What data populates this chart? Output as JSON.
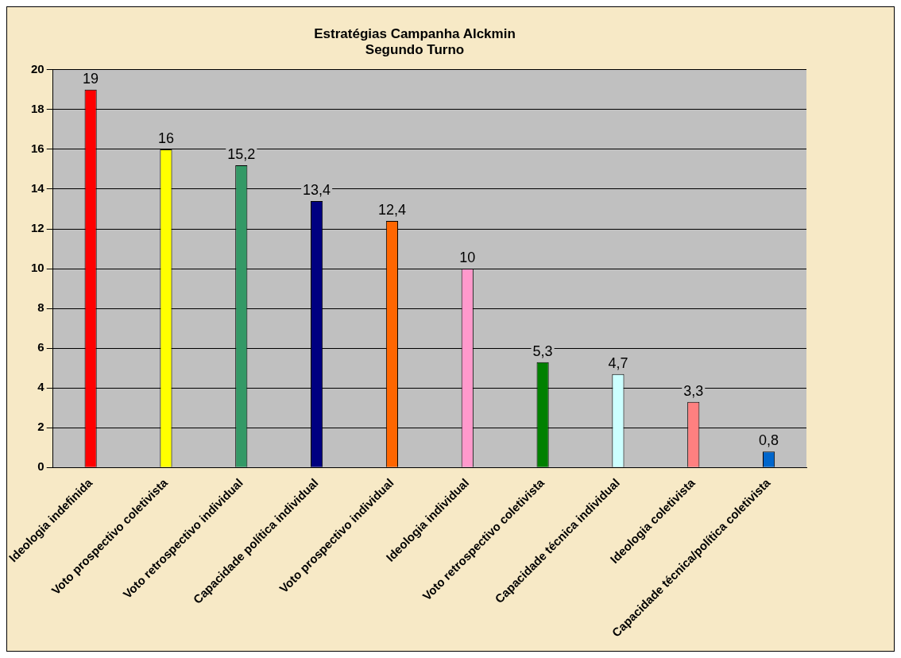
{
  "chart_data": {
    "type": "bar",
    "title": "Estratégias Campanha Alckmin",
    "subtitle": "Segundo Turno",
    "categories": [
      "Ideologia indefinida",
      "Voto prospectivo coletivista",
      "Voto retrospectivo individual",
      "Capacidade política individual",
      "Voto prospectivo individual",
      "Ideologia individual",
      "Voto retrospectivo coletivista",
      "Capacidade técnica individual",
      "Ideologia coletivista",
      "Capacidade técnica/política coletivista"
    ],
    "values": [
      19,
      16,
      15.2,
      13.4,
      12.4,
      10,
      5.3,
      4.7,
      3.3,
      0.8
    ],
    "value_labels": [
      "19",
      "16",
      "15,2",
      "13,4",
      "12,4",
      "10",
      "5,3",
      "4,7",
      "3,3",
      "0,8"
    ],
    "colors": [
      "#ff0000",
      "#ffff00",
      "#339966",
      "#000080",
      "#ff6600",
      "#ff99cc",
      "#008000",
      "#ccffff",
      "#ff8080",
      "#0066cc"
    ],
    "ylim": [
      0,
      20
    ],
    "yticks": [
      0,
      2,
      4,
      6,
      8,
      10,
      12,
      14,
      16,
      18,
      20
    ],
    "grid": "y",
    "legend": false
  }
}
